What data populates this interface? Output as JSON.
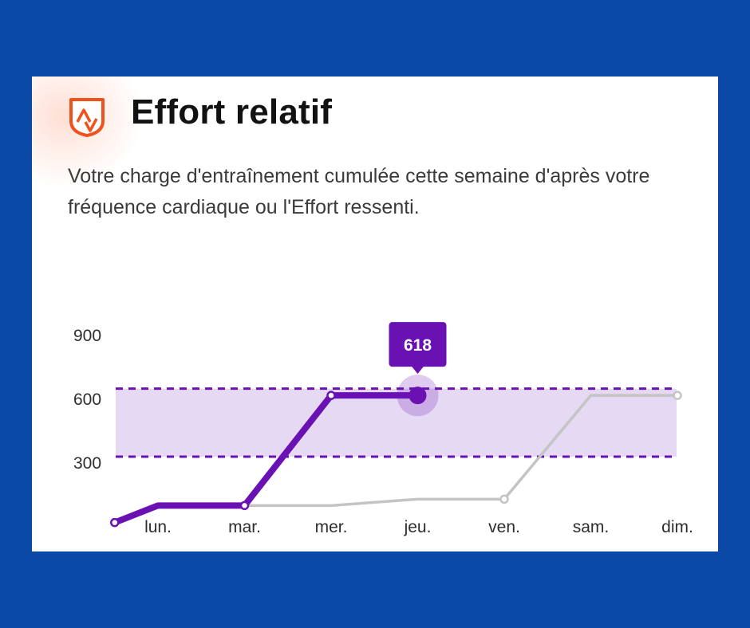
{
  "header": {
    "title": "Effort relatif",
    "description": "Votre charge d'entraînement cumulée cette semaine d'après votre fréquence cardiaque ou l'Effort ressenti."
  },
  "icons": {
    "logo": "strava-shield-icon"
  },
  "colors": {
    "background": "#0a4aa6",
    "current_week": "#6a11b4",
    "previous_week": "#c4c4c4",
    "range_fill": "#e6d9f3",
    "range_border": "#6a11b4",
    "logo": "#f0521c"
  },
  "chart_data": {
    "type": "line",
    "categories": [
      "lun.",
      "mar.",
      "mer.",
      "jeu.",
      "ven.",
      "sam.",
      "dim."
    ],
    "y_ticks": [
      900,
      600,
      300
    ],
    "ylim": [
      0,
      900
    ],
    "grid": false,
    "series": [
      {
        "key": "current",
        "x": [
          -0.5,
          0,
          1,
          2,
          3
        ],
        "values": [
          20,
          100,
          100,
          618,
          618
        ],
        "markers_at": [
          0,
          2,
          3
        ]
      },
      {
        "key": "previous",
        "x": [
          1,
          2,
          3,
          4,
          5,
          6
        ],
        "values": [
          100,
          100,
          130,
          130,
          618,
          618
        ],
        "markers_at": [
          3,
          5
        ]
      }
    ],
    "target_range": [
      330,
      650
    ],
    "highlight": {
      "category": "jeu.",
      "value": 618,
      "label": "618"
    }
  }
}
